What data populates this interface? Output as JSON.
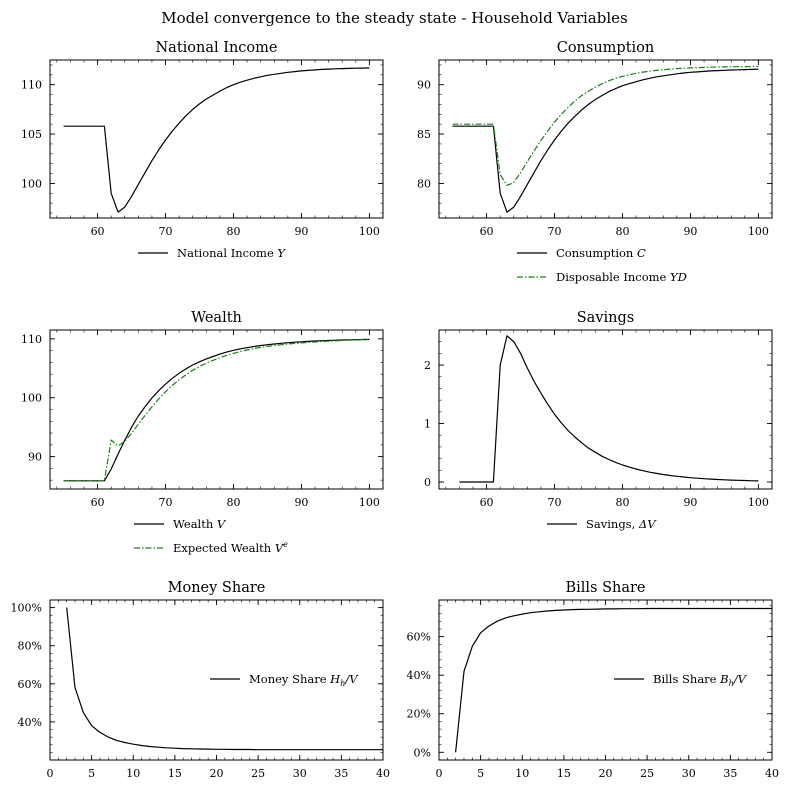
{
  "figure_title": "Model convergence to the steady state - Household Variables",
  "colors": {
    "primary": "#000000",
    "secondary": "#1a7d1a"
  },
  "chart_data": [
    {
      "type": "line",
      "title": "National Income",
      "xlim": [
        53,
        102
      ],
      "ylim": [
        96.5,
        112.5
      ],
      "xticks": [
        60,
        70,
        80,
        90,
        100
      ],
      "yticks": [
        100,
        105,
        110
      ],
      "ytick_format": "number",
      "legend_location": "below",
      "series": [
        {
          "name": "National Income Y",
          "color": "#000000",
          "style": "solid",
          "x": [
            55,
            56,
            57,
            58,
            59,
            60,
            61,
            62,
            63,
            64,
            65,
            66,
            67,
            68,
            69,
            70,
            71,
            72,
            73,
            74,
            75,
            76,
            77,
            78,
            79,
            80,
            81,
            82,
            83,
            84,
            85,
            86,
            87,
            88,
            89,
            90,
            91,
            92,
            93,
            94,
            95,
            96,
            97,
            98,
            99,
            100
          ],
          "y": [
            105.8,
            105.8,
            105.8,
            105.8,
            105.8,
            105.8,
            105.8,
            99.0,
            97.1,
            97.6,
            98.7,
            99.9,
            101.1,
            102.3,
            103.4,
            104.4,
            105.3,
            106.1,
            106.85,
            107.5,
            108.05,
            108.55,
            108.95,
            109.35,
            109.7,
            110.0,
            110.25,
            110.45,
            110.65,
            110.8,
            110.95,
            111.05,
            111.15,
            111.25,
            111.33,
            111.4,
            111.45,
            111.5,
            111.55,
            111.58,
            111.61,
            111.63,
            111.65,
            111.67,
            111.68,
            111.7
          ]
        }
      ]
    },
    {
      "type": "line",
      "title": "Consumption",
      "xlim": [
        53,
        102
      ],
      "ylim": [
        76.5,
        92.5
      ],
      "xticks": [
        60,
        70,
        80,
        90,
        100
      ],
      "yticks": [
        80,
        85,
        90
      ],
      "ytick_format": "number",
      "legend_location": "below",
      "series": [
        {
          "name": "Consumption C",
          "color": "#000000",
          "style": "solid",
          "x": [
            55,
            56,
            57,
            58,
            59,
            60,
            61,
            62,
            63,
            64,
            65,
            66,
            67,
            68,
            69,
            70,
            71,
            72,
            73,
            74,
            75,
            76,
            77,
            78,
            79,
            80,
            81,
            82,
            83,
            84,
            85,
            86,
            87,
            88,
            89,
            90,
            91,
            92,
            93,
            94,
            95,
            96,
            97,
            98,
            99,
            100
          ],
          "y": [
            85.8,
            85.8,
            85.8,
            85.8,
            85.8,
            85.8,
            85.8,
            79.0,
            77.1,
            77.6,
            78.7,
            79.9,
            81.1,
            82.3,
            83.4,
            84.4,
            85.3,
            86.1,
            86.8,
            87.45,
            88.0,
            88.5,
            88.9,
            89.3,
            89.6,
            89.9,
            90.1,
            90.3,
            90.5,
            90.65,
            90.8,
            90.9,
            91.0,
            91.1,
            91.18,
            91.25,
            91.3,
            91.35,
            91.4,
            91.43,
            91.46,
            91.49,
            91.51,
            91.53,
            91.55,
            91.57
          ]
        },
        {
          "name": "Disposable Income YD",
          "color": "#1a7d1a",
          "style": "dashdot",
          "x": [
            55,
            56,
            57,
            58,
            59,
            60,
            61,
            62,
            63,
            64,
            65,
            66,
            67,
            68,
            69,
            70,
            71,
            72,
            73,
            74,
            75,
            76,
            77,
            78,
            79,
            80,
            81,
            82,
            83,
            84,
            85,
            86,
            87,
            88,
            89,
            90,
            91,
            92,
            93,
            94,
            95,
            96,
            97,
            98,
            99,
            100
          ],
          "y": [
            86.0,
            86.0,
            86.0,
            86.0,
            86.0,
            86.0,
            86.0,
            80.9,
            79.8,
            80.1,
            81.1,
            82.2,
            83.3,
            84.35,
            85.3,
            86.2,
            87.0,
            87.7,
            88.35,
            88.9,
            89.35,
            89.75,
            90.1,
            90.4,
            90.65,
            90.85,
            91.0,
            91.15,
            91.27,
            91.37,
            91.45,
            91.52,
            91.58,
            91.63,
            91.67,
            91.7,
            91.73,
            91.75,
            91.77,
            91.79,
            91.8,
            91.81,
            91.82,
            91.83,
            91.84,
            91.85
          ]
        }
      ]
    },
    {
      "type": "line",
      "title": "Wealth",
      "xlim": [
        53,
        102
      ],
      "ylim": [
        84.5,
        111.5
      ],
      "xticks": [
        60,
        70,
        80,
        90,
        100
      ],
      "yticks": [
        90,
        100,
        110
      ],
      "ytick_format": "number",
      "legend_location": "below",
      "series": [
        {
          "name": "Wealth V",
          "color": "#000000",
          "style": "solid",
          "x": [
            55,
            56,
            57,
            58,
            59,
            60,
            61,
            62,
            63,
            64,
            65,
            66,
            67,
            68,
            69,
            70,
            71,
            72,
            73,
            74,
            75,
            76,
            77,
            78,
            79,
            80,
            81,
            82,
            83,
            84,
            85,
            86,
            87,
            88,
            89,
            90,
            91,
            92,
            93,
            94,
            95,
            96,
            97,
            98,
            99,
            100
          ],
          "y": [
            85.9,
            85.9,
            85.9,
            85.9,
            85.9,
            85.9,
            85.9,
            87.9,
            90.4,
            92.8,
            95.0,
            96.9,
            98.5,
            99.95,
            101.2,
            102.3,
            103.3,
            104.15,
            104.9,
            105.55,
            106.1,
            106.6,
            107.0,
            107.4,
            107.75,
            108.05,
            108.3,
            108.5,
            108.7,
            108.87,
            109.0,
            109.13,
            109.25,
            109.35,
            109.43,
            109.5,
            109.57,
            109.63,
            109.68,
            109.72,
            109.76,
            109.8,
            109.83,
            109.86,
            109.88,
            109.9
          ]
        },
        {
          "name": "Expected Wealth V^e",
          "color": "#1a7d1a",
          "style": "dashdot",
          "x": [
            55,
            56,
            57,
            58,
            59,
            60,
            61,
            62,
            63,
            64,
            65,
            66,
            67,
            68,
            69,
            70,
            71,
            72,
            73,
            74,
            75,
            76,
            77,
            78,
            79,
            80,
            81,
            82,
            83,
            84,
            85,
            86,
            87,
            88,
            89,
            90,
            91,
            92,
            93,
            94,
            95,
            96,
            97,
            98,
            99,
            100
          ],
          "y": [
            85.9,
            85.9,
            85.9,
            85.9,
            85.9,
            85.9,
            85.9,
            92.8,
            91.8,
            92.6,
            94.0,
            95.5,
            97.0,
            98.45,
            99.8,
            101.0,
            102.1,
            103.05,
            103.9,
            104.65,
            105.3,
            105.85,
            106.35,
            106.8,
            107.2,
            107.55,
            107.85,
            108.1,
            108.35,
            108.55,
            108.72,
            108.87,
            109.0,
            109.12,
            109.22,
            109.31,
            109.4,
            109.48,
            109.55,
            109.61,
            109.67,
            109.72,
            109.77,
            109.81,
            109.85,
            109.88
          ]
        }
      ]
    },
    {
      "type": "line",
      "title": "Savings",
      "xlim": [
        53,
        102
      ],
      "ylim": [
        -0.12,
        2.6
      ],
      "xticks": [
        60,
        70,
        80,
        90,
        100
      ],
      "yticks": [
        0,
        1,
        2
      ],
      "ytick_format": "number",
      "legend_location": "below",
      "series": [
        {
          "name": "Savings, ΔV",
          "color": "#000000",
          "style": "solid",
          "x": [
            56,
            57,
            58,
            59,
            60,
            61,
            62,
            63,
            64,
            65,
            66,
            67,
            68,
            69,
            70,
            71,
            72,
            73,
            74,
            75,
            76,
            77,
            78,
            79,
            80,
            81,
            82,
            83,
            84,
            85,
            86,
            87,
            88,
            89,
            90,
            91,
            92,
            93,
            94,
            95,
            96,
            97,
            98,
            99,
            100
          ],
          "y": [
            0,
            0,
            0,
            0,
            0,
            0,
            2.0,
            2.5,
            2.4,
            2.2,
            1.95,
            1.72,
            1.52,
            1.33,
            1.16,
            1.01,
            0.88,
            0.77,
            0.67,
            0.58,
            0.51,
            0.44,
            0.385,
            0.335,
            0.29,
            0.255,
            0.222,
            0.193,
            0.168,
            0.147,
            0.128,
            0.111,
            0.097,
            0.085,
            0.074,
            0.064,
            0.056,
            0.049,
            0.043,
            0.037,
            0.032,
            0.028,
            0.025,
            0.021,
            0.019
          ]
        }
      ]
    },
    {
      "type": "line",
      "title": "Money Share",
      "xlim": [
        0,
        40
      ],
      "ylim": [
        0.2,
        1.04
      ],
      "xticks": [
        0,
        5,
        10,
        15,
        20,
        25,
        30,
        35,
        40
      ],
      "yticks": [
        0.4,
        0.6,
        0.8,
        1.0
      ],
      "ytick_format": "percent",
      "legend_location": "center-right",
      "series": [
        {
          "name": "Money Share H_h/V",
          "color": "#000000",
          "style": "solid",
          "x": [
            2,
            3,
            4,
            5,
            6,
            7,
            8,
            9,
            10,
            11,
            12,
            13,
            14,
            15,
            16,
            17,
            18,
            19,
            20,
            21,
            22,
            23,
            24,
            25,
            26,
            27,
            28,
            29,
            30,
            31,
            32,
            33,
            34,
            35,
            36,
            37,
            38,
            39,
            40
          ],
          "y": [
            1.0,
            0.58,
            0.45,
            0.38,
            0.345,
            0.32,
            0.303,
            0.292,
            0.283,
            0.276,
            0.271,
            0.267,
            0.264,
            0.262,
            0.26,
            0.259,
            0.258,
            0.257,
            0.256,
            0.256,
            0.255,
            0.255,
            0.255,
            0.254,
            0.254,
            0.254,
            0.254,
            0.254,
            0.254,
            0.254,
            0.254,
            0.254,
            0.254,
            0.254,
            0.254,
            0.254,
            0.254,
            0.254,
            0.254
          ]
        }
      ]
    },
    {
      "type": "line",
      "title": "Bills Share",
      "xlim": [
        0,
        40
      ],
      "ylim": [
        -0.04,
        0.79
      ],
      "xticks": [
        0,
        5,
        10,
        15,
        20,
        25,
        30,
        35,
        40
      ],
      "yticks": [
        0,
        0.2,
        0.4,
        0.6
      ],
      "ytick_format": "percent",
      "legend_location": "center-right",
      "series": [
        {
          "name": "Bills Share B_h/V",
          "color": "#000000",
          "style": "solid",
          "x": [
            2,
            3,
            4,
            5,
            6,
            7,
            8,
            9,
            10,
            11,
            12,
            13,
            14,
            15,
            16,
            17,
            18,
            19,
            20,
            21,
            22,
            23,
            24,
            25,
            26,
            27,
            28,
            29,
            30,
            31,
            32,
            33,
            34,
            35,
            36,
            37,
            38,
            39,
            40
          ],
          "y": [
            0.0,
            0.42,
            0.55,
            0.62,
            0.655,
            0.68,
            0.697,
            0.708,
            0.717,
            0.724,
            0.729,
            0.733,
            0.736,
            0.738,
            0.74,
            0.741,
            0.742,
            0.743,
            0.744,
            0.744,
            0.745,
            0.745,
            0.745,
            0.746,
            0.746,
            0.746,
            0.746,
            0.746,
            0.746,
            0.746,
            0.746,
            0.746,
            0.746,
            0.746,
            0.746,
            0.746,
            0.746,
            0.746,
            0.746
          ]
        }
      ]
    }
  ]
}
